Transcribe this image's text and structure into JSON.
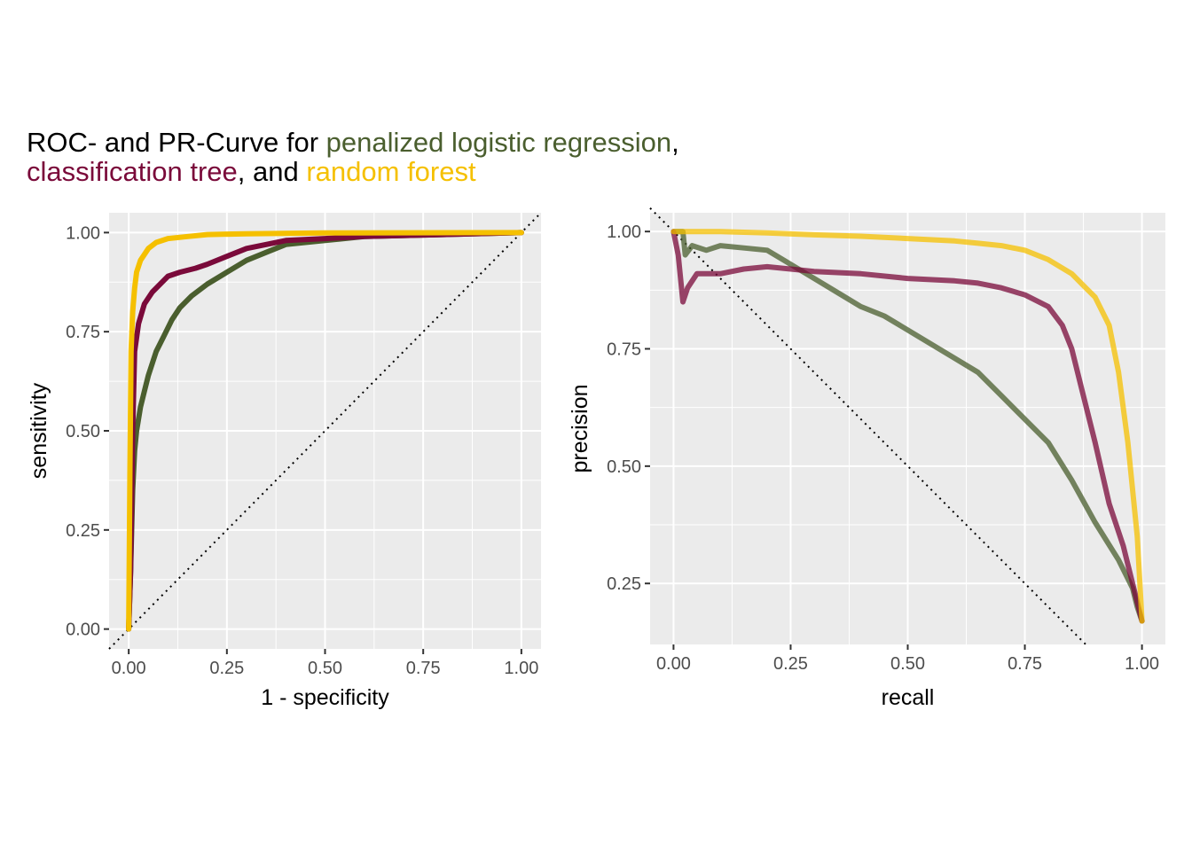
{
  "title": {
    "line1": [
      {
        "text": "ROC- and PR-Curve for ",
        "color": "#000000"
      },
      {
        "text": "penalized logistic regression",
        "color": "#4a5e2e"
      },
      {
        "text": ",",
        "color": "#000000"
      }
    ],
    "line2": [
      {
        "text": "classification tree",
        "color": "#7a0a3a"
      },
      {
        "text": ", and ",
        "color": "#000000"
      },
      {
        "text": "random forest",
        "color": "#f5c000"
      }
    ]
  },
  "colors": {
    "panel_bg": "#ebebeb",
    "grid_major": "#ffffff",
    "penalized_logistic_regression": "#4a5e2e",
    "classification_tree": "#7a0a3a",
    "random_forest": "#f5c000"
  },
  "chart_data": [
    {
      "type": "line",
      "xlabel": "1 - specificity",
      "ylabel": "sensitivity",
      "xlim": [
        -0.05,
        1.05
      ],
      "ylim": [
        -0.05,
        1.05
      ],
      "xticks": [
        0,
        0.25,
        0.5,
        0.75,
        1
      ],
      "xtick_labels": [
        "0.00",
        "0.25",
        "0.50",
        "0.75",
        "1.00"
      ],
      "yticks": [
        0,
        0.25,
        0.5,
        0.75,
        1
      ],
      "ytick_labels": [
        "0.00",
        "0.25",
        "0.50",
        "0.75",
        "1.00"
      ],
      "grid": true,
      "reference_line": {
        "style": "dotted",
        "points": [
          [
            -0.05,
            -0.05
          ],
          [
            1.05,
            1.05
          ]
        ]
      },
      "series": [
        {
          "key": "penalized_logistic_regression",
          "opacity": 1,
          "points": [
            [
              0,
              0
            ],
            [
              0.005,
              0.15
            ],
            [
              0.01,
              0.35
            ],
            [
              0.015,
              0.45
            ],
            [
              0.02,
              0.5
            ],
            [
              0.03,
              0.56
            ],
            [
              0.04,
              0.6
            ],
            [
              0.05,
              0.64
            ],
            [
              0.07,
              0.7
            ],
            [
              0.09,
              0.74
            ],
            [
              0.11,
              0.78
            ],
            [
              0.13,
              0.81
            ],
            [
              0.16,
              0.84
            ],
            [
              0.2,
              0.87
            ],
            [
              0.25,
              0.9
            ],
            [
              0.3,
              0.93
            ],
            [
              0.35,
              0.95
            ],
            [
              0.4,
              0.97
            ],
            [
              0.5,
              0.98
            ],
            [
              0.6,
              0.99
            ],
            [
              0.8,
              0.995
            ],
            [
              1,
              1
            ]
          ]
        },
        {
          "key": "classification_tree",
          "opacity": 1,
          "points": [
            [
              0,
              0
            ],
            [
              0.005,
              0.15
            ],
            [
              0.01,
              0.5
            ],
            [
              0.015,
              0.7
            ],
            [
              0.025,
              0.77
            ],
            [
              0.04,
              0.82
            ],
            [
              0.06,
              0.85
            ],
            [
              0.08,
              0.87
            ],
            [
              0.1,
              0.89
            ],
            [
              0.13,
              0.9
            ],
            [
              0.17,
              0.91
            ],
            [
              0.2,
              0.92
            ],
            [
              0.25,
              0.94
            ],
            [
              0.3,
              0.96
            ],
            [
              0.35,
              0.97
            ],
            [
              0.4,
              0.98
            ],
            [
              0.5,
              0.985
            ],
            [
              0.6,
              0.99
            ],
            [
              0.8,
              0.995
            ],
            [
              1,
              1
            ]
          ]
        },
        {
          "key": "random_forest",
          "opacity": 1,
          "points": [
            [
              0,
              0
            ],
            [
              0.003,
              0.4
            ],
            [
              0.006,
              0.7
            ],
            [
              0.01,
              0.8
            ],
            [
              0.015,
              0.86
            ],
            [
              0.02,
              0.9
            ],
            [
              0.03,
              0.93
            ],
            [
              0.05,
              0.96
            ],
            [
              0.07,
              0.975
            ],
            [
              0.1,
              0.985
            ],
            [
              0.15,
              0.99
            ],
            [
              0.2,
              0.995
            ],
            [
              0.3,
              0.997
            ],
            [
              0.5,
              0.999
            ],
            [
              1,
              1
            ]
          ]
        }
      ]
    },
    {
      "type": "line",
      "xlabel": "recall",
      "ylabel": "precision",
      "xlim": [
        -0.05,
        1.05
      ],
      "ylim": [
        0.12,
        1.04
      ],
      "xticks": [
        0,
        0.25,
        0.5,
        0.75,
        1
      ],
      "xtick_labels": [
        "0.00",
        "0.25",
        "0.50",
        "0.75",
        "1.00"
      ],
      "yticks": [
        0.25,
        0.5,
        0.75,
        1
      ],
      "ytick_labels": [
        "0.25",
        "0.50",
        "0.75",
        "1.00"
      ],
      "grid": true,
      "reference_line": {
        "style": "dotted",
        "points": [
          [
            -0.05,
            1.05
          ],
          [
            0.88,
            0.12
          ]
        ]
      },
      "series": [
        {
          "key": "penalized_logistic_regression",
          "opacity": 0.75,
          "points": [
            [
              0,
              1
            ],
            [
              0.02,
              1
            ],
            [
              0.025,
              0.95
            ],
            [
              0.04,
              0.97
            ],
            [
              0.07,
              0.96
            ],
            [
              0.1,
              0.97
            ],
            [
              0.15,
              0.965
            ],
            [
              0.2,
              0.96
            ],
            [
              0.25,
              0.93
            ],
            [
              0.3,
              0.9
            ],
            [
              0.35,
              0.87
            ],
            [
              0.4,
              0.84
            ],
            [
              0.45,
              0.82
            ],
            [
              0.5,
              0.79
            ],
            [
              0.55,
              0.76
            ],
            [
              0.6,
              0.73
            ],
            [
              0.65,
              0.7
            ],
            [
              0.7,
              0.65
            ],
            [
              0.75,
              0.6
            ],
            [
              0.8,
              0.55
            ],
            [
              0.85,
              0.47
            ],
            [
              0.9,
              0.38
            ],
            [
              0.95,
              0.3
            ],
            [
              0.98,
              0.24
            ],
            [
              0.99,
              0.2
            ],
            [
              1,
              0.17
            ]
          ]
        },
        {
          "key": "classification_tree",
          "opacity": 0.75,
          "points": [
            [
              0,
              1
            ],
            [
              0.01,
              0.95
            ],
            [
              0.02,
              0.85
            ],
            [
              0.03,
              0.88
            ],
            [
              0.05,
              0.91
            ],
            [
              0.1,
              0.91
            ],
            [
              0.15,
              0.92
            ],
            [
              0.2,
              0.925
            ],
            [
              0.25,
              0.92
            ],
            [
              0.3,
              0.915
            ],
            [
              0.4,
              0.91
            ],
            [
              0.5,
              0.9
            ],
            [
              0.6,
              0.895
            ],
            [
              0.65,
              0.89
            ],
            [
              0.7,
              0.88
            ],
            [
              0.75,
              0.865
            ],
            [
              0.8,
              0.84
            ],
            [
              0.83,
              0.8
            ],
            [
              0.85,
              0.75
            ],
            [
              0.87,
              0.67
            ],
            [
              0.9,
              0.55
            ],
            [
              0.93,
              0.42
            ],
            [
              0.96,
              0.33
            ],
            [
              0.98,
              0.25
            ],
            [
              1,
              0.17
            ]
          ]
        },
        {
          "key": "random_forest",
          "opacity": 0.75,
          "points": [
            [
              0,
              1
            ],
            [
              0.1,
              1
            ],
            [
              0.2,
              0.997
            ],
            [
              0.3,
              0.993
            ],
            [
              0.4,
              0.99
            ],
            [
              0.5,
              0.985
            ],
            [
              0.6,
              0.98
            ],
            [
              0.65,
              0.975
            ],
            [
              0.7,
              0.97
            ],
            [
              0.75,
              0.96
            ],
            [
              0.8,
              0.94
            ],
            [
              0.85,
              0.91
            ],
            [
              0.88,
              0.88
            ],
            [
              0.9,
              0.86
            ],
            [
              0.93,
              0.8
            ],
            [
              0.95,
              0.7
            ],
            [
              0.97,
              0.55
            ],
            [
              0.98,
              0.45
            ],
            [
              0.99,
              0.35
            ],
            [
              1,
              0.17
            ]
          ]
        }
      ]
    }
  ]
}
